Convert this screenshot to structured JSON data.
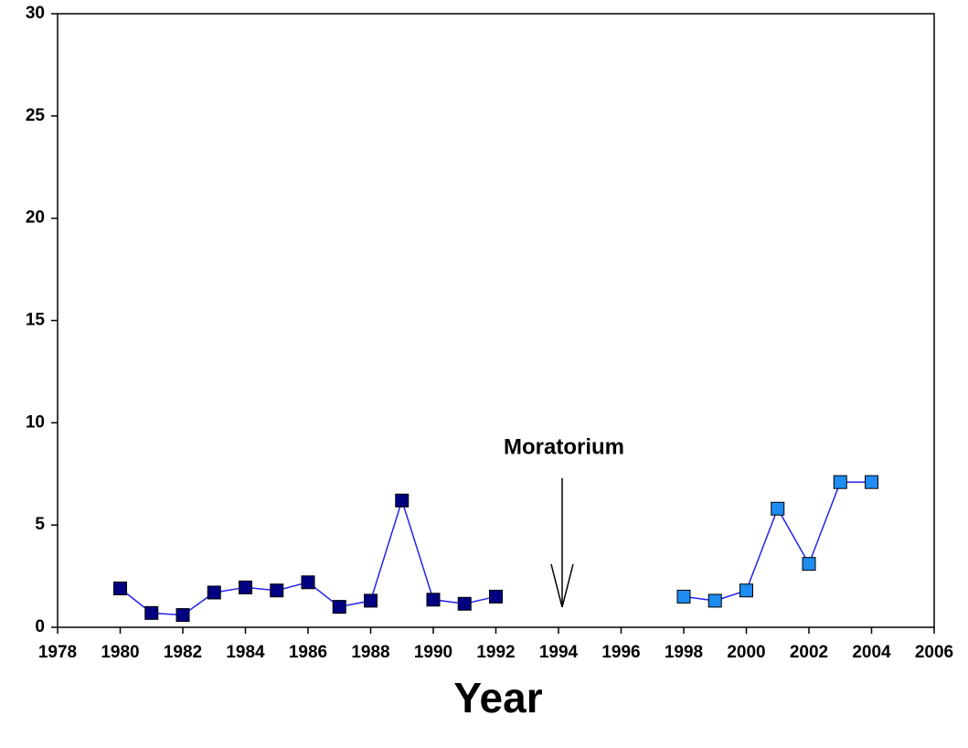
{
  "chart_data": {
    "type": "line",
    "xlabel": "Year",
    "annotation": "Moratorium",
    "series": [
      {
        "color": "#000080",
        "line_color": "#2222ee",
        "x": [
          1980,
          1981,
          1982,
          1983,
          1984,
          1985,
          1986,
          1987,
          1988,
          1989,
          1990,
          1991,
          1992
        ],
        "values": [
          1.9,
          0.7,
          0.6,
          1.7,
          1.95,
          1.8,
          2.2,
          1.0,
          1.3,
          6.2,
          1.35,
          1.15,
          1.5
        ]
      },
      {
        "color": "#1e8cf0",
        "line_color": "#2222ee",
        "x": [
          1998,
          1999,
          2000,
          2001,
          2002,
          2003,
          2004
        ],
        "values": [
          1.5,
          1.3,
          1.8,
          5.8,
          3.1,
          7.1,
          7.1
        ]
      }
    ],
    "xlim": [
      1978,
      2006
    ],
    "xticks": [
      1978,
      1980,
      1982,
      1984,
      1986,
      1988,
      1990,
      1992,
      1994,
      1996,
      1998,
      2000,
      2002,
      2004,
      2006
    ],
    "ylim": [
      0,
      30
    ],
    "yticks": [
      0,
      5,
      10,
      15,
      20,
      25,
      30
    ]
  }
}
